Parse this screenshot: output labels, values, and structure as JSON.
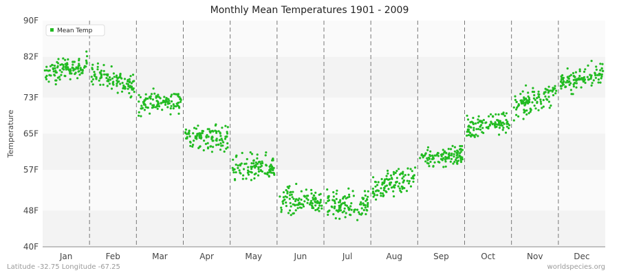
{
  "chart_data": {
    "type": "scatter",
    "title": "Monthly Mean Temperatures 1901 - 2009",
    "xlabel": "",
    "ylabel": "Temperature",
    "categories": [
      "Jan",
      "Feb",
      "Mar",
      "Apr",
      "May",
      "Jun",
      "Jul",
      "Aug",
      "Sep",
      "Oct",
      "Nov",
      "Dec"
    ],
    "yticks": [
      "40F",
      "48F",
      "57F",
      "65F",
      "73F",
      "82F",
      "90F"
    ],
    "ylim": [
      40,
      90
    ],
    "grid": true,
    "legend": {
      "position": "top-left",
      "entries": [
        "Mean Temp"
      ]
    },
    "series": [
      {
        "name": "Mean Temp",
        "color": "#22bb22",
        "monthly_profile": [
          {
            "month": "Jan",
            "start": 78.0,
            "end": 80.5,
            "spread": 2.0
          },
          {
            "month": "Feb",
            "start": 78.5,
            "end": 75.5,
            "spread": 2.0
          },
          {
            "month": "Mar",
            "start": 71.5,
            "end": 72.5,
            "spread": 2.0
          },
          {
            "month": "Apr",
            "start": 64.5,
            "end": 64.0,
            "spread": 2.5
          },
          {
            "month": "May",
            "start": 57.0,
            "end": 57.5,
            "spread": 2.5
          },
          {
            "month": "Jun",
            "start": 50.0,
            "end": 50.5,
            "spread": 2.5
          },
          {
            "month": "Jul",
            "start": 49.0,
            "end": 49.5,
            "spread": 2.5
          },
          {
            "month": "Aug",
            "start": 53.0,
            "end": 55.5,
            "spread": 2.2
          },
          {
            "month": "Sep",
            "start": 59.5,
            "end": 60.5,
            "spread": 2.0
          },
          {
            "month": "Oct",
            "start": 66.0,
            "end": 68.0,
            "spread": 2.2
          },
          {
            "month": "Nov",
            "start": 71.0,
            "end": 74.0,
            "spread": 2.2
          },
          {
            "month": "Dec",
            "start": 76.0,
            "end": 78.5,
            "spread": 2.0
          }
        ]
      }
    ]
  },
  "footer": {
    "location": "Latitude -32.75 Longitude -67.25",
    "credit": "worldspecies.org"
  }
}
